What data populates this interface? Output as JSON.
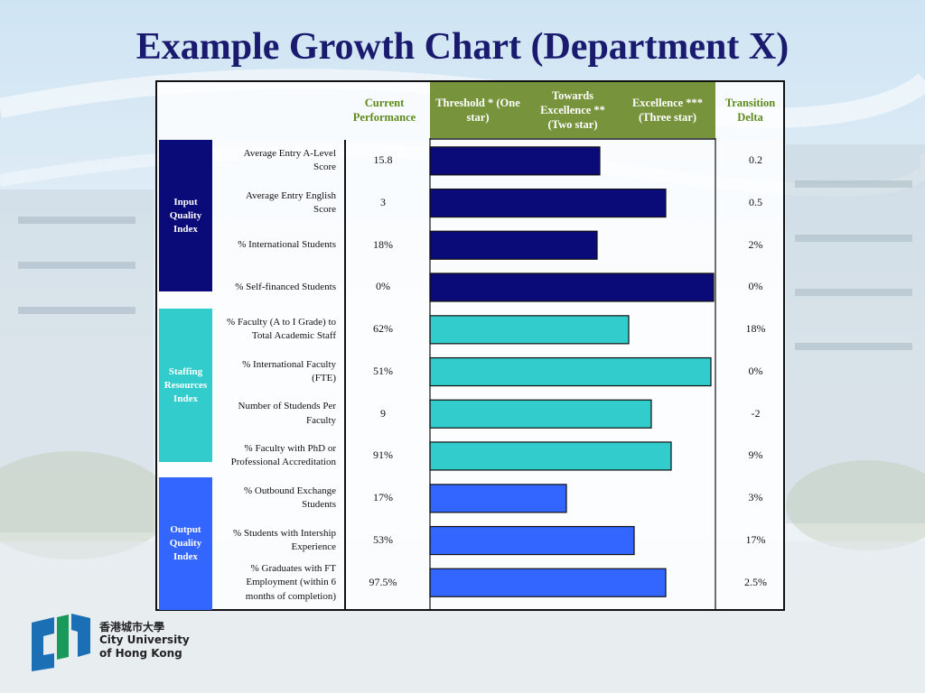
{
  "title": "Example Growth Chart (Department X)",
  "logo": {
    "chinese_name": "香港城市大學",
    "english_line1": "City University",
    "english_line2": "of Hong Kong"
  },
  "colors": {
    "title": "#1a1a6e",
    "header_green": "#77933c",
    "header_text_green": "#5d8a1a",
    "input_group": "#0a0a78",
    "staffing_group": "#33cccc",
    "output_group": "#3366ff",
    "logo_blue": "#1a6fb5",
    "logo_green": "#1a9a5a"
  },
  "chart_data": {
    "type": "bar",
    "orientation": "horizontal",
    "title": "Example Growth Chart (Department X)",
    "columns": {
      "current": "Current Performance",
      "threshold": "Threshold * (One star)",
      "towards": "Towards Excellence ** (Two star)",
      "excellence": "Excellence *** (Three star)",
      "delta": "Transition Delta"
    },
    "scale_note": "bar length relative to the Excellence *** column boundary (1.0 = reaches Excellence)",
    "groups": [
      {
        "name": "Input Quality Index",
        "name_lines": [
          "Input",
          "Quality",
          "Index"
        ],
        "color": "#0a0a78",
        "rows": [
          {
            "label_lines": [
              "Average Entry A-Level",
              "Score"
            ],
            "value": "15.8",
            "delta": "0.2",
            "level": 0.6
          },
          {
            "label_lines": [
              "Average Entry English",
              "Score"
            ],
            "value": "3",
            "delta": "0.5",
            "level": 0.83
          },
          {
            "label_lines": [
              "% International Students"
            ],
            "value": "18%",
            "delta": "2%",
            "level": 0.59
          },
          {
            "label_lines": [
              "% Self-financed Students"
            ],
            "value": "0%",
            "delta": "0%",
            "level": 1.0
          }
        ]
      },
      {
        "name": "Staffing Resources Index",
        "name_lines": [
          "Staffing",
          "Resources",
          "Index"
        ],
        "color": "#33cccc",
        "rows": [
          {
            "label_lines": [
              "% Faculty (A to I Grade) to",
              "Total Academic Staff"
            ],
            "value": "62%",
            "delta": "18%",
            "level": 0.7
          },
          {
            "label_lines": [
              "% International Faculty",
              "(FTE)"
            ],
            "value": "51%",
            "delta": "0%",
            "level": 0.99
          },
          {
            "label_lines": [
              "Number of Studends Per",
              "Faculty"
            ],
            "value": "9",
            "delta": "-2",
            "level": 0.78
          },
          {
            "label_lines": [
              "% Faculty with PhD or",
              "Professional Accreditation"
            ],
            "value": "91%",
            "delta": "9%",
            "level": 0.85
          }
        ]
      },
      {
        "name": "Output Quality Index",
        "name_lines": [
          "Output",
          "Quality",
          "Index"
        ],
        "color": "#3366ff",
        "rows": [
          {
            "label_lines": [
              "% Outbound Exchange",
              "Students"
            ],
            "value": "17%",
            "delta": "3%",
            "level": 0.48
          },
          {
            "label_lines": [
              "% Students with Intership",
              "Experience"
            ],
            "value": "53%",
            "delta": "17%",
            "level": 0.72
          },
          {
            "label_lines": [
              "% Graduates with FT",
              "Employment (within 6",
              "months of completion)"
            ],
            "value": "97.5%",
            "delta": "2.5%",
            "level": 0.83
          }
        ]
      }
    ]
  }
}
